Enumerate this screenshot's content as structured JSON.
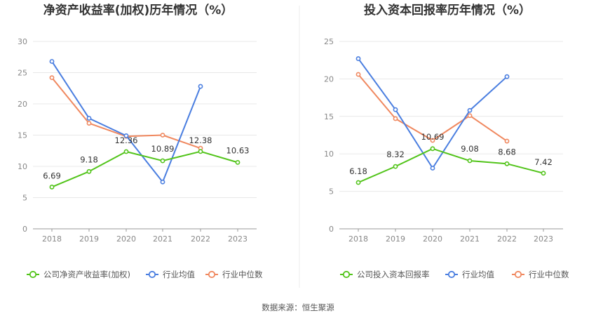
{
  "source": "数据来源：恒生聚源",
  "colors": {
    "company": "#52c41a",
    "avg": "#4a7ee0",
    "median": "#f0885f",
    "grid": "#e8e8e8",
    "axis": "#999999"
  },
  "chart_data": [
    {
      "type": "line",
      "title": "净资产收益率(加权)历年情况（%）",
      "categories": [
        "2018",
        "2019",
        "2020",
        "2021",
        "2022",
        "2023"
      ],
      "ylim": [
        0,
        30
      ],
      "yticks": [
        "0",
        "5",
        "10",
        "15",
        "20",
        "25",
        "30"
      ],
      "grid": true,
      "legend_position": "bottom",
      "series": [
        {
          "name": "公司净资产收益率(加权)",
          "key": "company",
          "values": [
            6.69,
            9.18,
            12.36,
            10.89,
            12.38,
            10.63
          ],
          "labels": [
            "6.69",
            "9.18",
            "12.36",
            "10.89",
            "12.38",
            "10.63"
          ]
        },
        {
          "name": "行业均值",
          "key": "avg",
          "values": [
            26.8,
            17.7,
            14.9,
            7.5,
            22.8,
            null
          ]
        },
        {
          "name": "行业中位数",
          "key": "median",
          "values": [
            24.2,
            16.9,
            14.8,
            15.0,
            12.9,
            null
          ]
        }
      ]
    },
    {
      "type": "line",
      "title": "投入资本回报率历年情况（%）",
      "categories": [
        "2018",
        "2019",
        "2020",
        "2021",
        "2022",
        "2023"
      ],
      "ylim": [
        0,
        25
      ],
      "yticks": [
        "0",
        "5",
        "10",
        "15",
        "20",
        "25"
      ],
      "grid": true,
      "legend_position": "bottom",
      "series": [
        {
          "name": "公司投入资本回报率",
          "key": "company",
          "values": [
            6.18,
            8.32,
            10.69,
            9.08,
            8.68,
            7.42
          ],
          "labels": [
            "6.18",
            "8.32",
            "10.69",
            "9.08",
            "8.68",
            "7.42"
          ]
        },
        {
          "name": "行业均值",
          "key": "avg",
          "values": [
            22.7,
            15.9,
            8.1,
            15.8,
            20.3,
            null
          ]
        },
        {
          "name": "行业中位数",
          "key": "median",
          "values": [
            20.6,
            14.7,
            11.8,
            15.1,
            11.7,
            null
          ]
        }
      ]
    }
  ]
}
